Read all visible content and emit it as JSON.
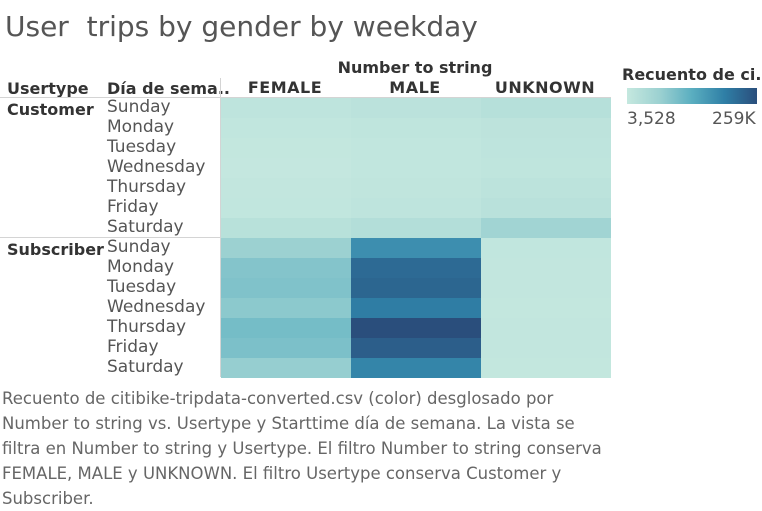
{
  "title": "User  trips by gender by weekday",
  "headers": {
    "usertype": "Usertype",
    "weekday": "Día de sema..",
    "columns_title": "Number to string"
  },
  "legend": {
    "title": "Recuento de ci..",
    "min_label": "3,528",
    "max_label": "259K",
    "color_min": "#c5e8df",
    "color_max": "#2a4e7c"
  },
  "caption": "Recuento de citibike-tripdata-converted.csv (color) desglosado por Number to string vs. Usertype y Starttime día de semana. La vista se filtra en Number to string y Usertype. El filtro Number to string conserva FEMALE, MALE y UNKNOWN. El filtro Usertype conserva Customer y Subscriber.",
  "chart_data": {
    "type": "heatmap",
    "color_range": [
      3528,
      259000
    ],
    "columns": [
      "FEMALE",
      "MALE",
      "UNKNOWN"
    ],
    "groups": [
      {
        "usertype": "Customer",
        "days": [
          "Sunday",
          "Monday",
          "Tuesday",
          "Wednesday",
          "Thursday",
          "Friday",
          "Saturday"
        ],
        "values": [
          [
            12000,
            16000,
            22000
          ],
          [
            8000,
            11000,
            14000
          ],
          [
            6000,
            9000,
            12000
          ],
          [
            5000,
            8000,
            11000
          ],
          [
            7000,
            10000,
            15000
          ],
          [
            9000,
            12000,
            19000
          ],
          [
            20000,
            26000,
            48000
          ]
        ]
      },
      {
        "usertype": "Subscriber",
        "days": [
          "Sunday",
          "Monday",
          "Tuesday",
          "Wednesday",
          "Thursday",
          "Friday",
          "Saturday"
        ],
        "values": [
          [
            55000,
            170000,
            8000
          ],
          [
            78000,
            222000,
            7000
          ],
          [
            82000,
            228000,
            7000
          ],
          [
            70000,
            198000,
            6500
          ],
          [
            92000,
            259000,
            7500
          ],
          [
            86000,
            238000,
            7000
          ],
          [
            60000,
            186000,
            6000
          ]
        ]
      }
    ]
  }
}
